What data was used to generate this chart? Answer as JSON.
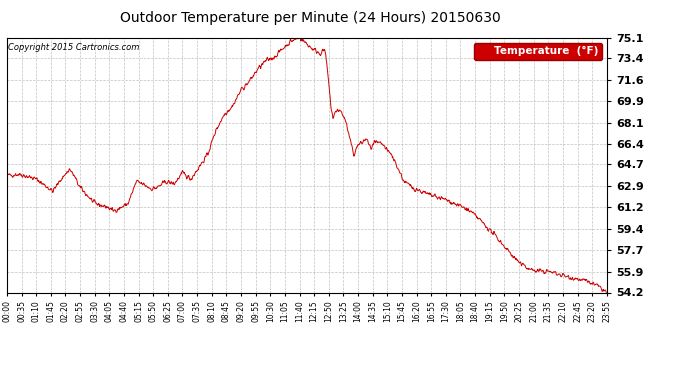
{
  "title": "Outdoor Temperature per Minute (24 Hours) 20150630",
  "copyright_text": "Copyright 2015 Cartronics.com",
  "legend_label": "Temperature  (°F)",
  "line_color": "#cc0000",
  "background_color": "#ffffff",
  "grid_color": "#bbbbbb",
  "ylim": [
    54.2,
    75.1
  ],
  "yticks": [
    54.2,
    55.9,
    57.7,
    59.4,
    61.2,
    62.9,
    64.7,
    66.4,
    68.1,
    69.9,
    71.6,
    73.4,
    75.1
  ],
  "x_tick_interval": 35,
  "total_minutes": 1436,
  "seed": 42,
  "key_points": [
    [
      0,
      63.8
    ],
    [
      30,
      63.9
    ],
    [
      70,
      63.5
    ],
    [
      90,
      63.0
    ],
    [
      110,
      62.5
    ],
    [
      130,
      63.5
    ],
    [
      150,
      64.3
    ],
    [
      160,
      63.8
    ],
    [
      175,
      62.8
    ],
    [
      210,
      61.5
    ],
    [
      240,
      61.2
    ],
    [
      255,
      60.9
    ],
    [
      270,
      61.1
    ],
    [
      290,
      61.5
    ],
    [
      310,
      63.3
    ],
    [
      330,
      63.0
    ],
    [
      345,
      62.7
    ],
    [
      360,
      62.8
    ],
    [
      380,
      63.3
    ],
    [
      400,
      63.1
    ],
    [
      420,
      64.0
    ],
    [
      440,
      63.5
    ],
    [
      460,
      64.5
    ],
    [
      480,
      65.5
    ],
    [
      500,
      67.5
    ],
    [
      520,
      68.8
    ],
    [
      540,
      69.5
    ],
    [
      560,
      70.8
    ],
    [
      580,
      71.5
    ],
    [
      600,
      72.5
    ],
    [
      620,
      73.2
    ],
    [
      640,
      73.5
    ],
    [
      660,
      74.2
    ],
    [
      680,
      74.8
    ],
    [
      700,
      75.1
    ],
    [
      720,
      74.5
    ],
    [
      730,
      74.2
    ],
    [
      740,
      74.0
    ],
    [
      750,
      73.8
    ],
    [
      760,
      74.1
    ],
    [
      765,
      73.0
    ],
    [
      775,
      69.5
    ],
    [
      780,
      68.5
    ],
    [
      790,
      69.2
    ],
    [
      800,
      69.0
    ],
    [
      810,
      68.3
    ],
    [
      820,
      66.8
    ],
    [
      830,
      65.5
    ],
    [
      840,
      66.3
    ],
    [
      850,
      66.5
    ],
    [
      860,
      66.8
    ],
    [
      870,
      66.0
    ],
    [
      880,
      66.5
    ],
    [
      900,
      66.3
    ],
    [
      910,
      65.8
    ],
    [
      920,
      65.5
    ],
    [
      930,
      64.8
    ],
    [
      950,
      63.3
    ],
    [
      970,
      62.8
    ],
    [
      990,
      62.5
    ],
    [
      1010,
      62.2
    ],
    [
      1030,
      62.0
    ],
    [
      1050,
      61.8
    ],
    [
      1070,
      61.5
    ],
    [
      1090,
      61.2
    ],
    [
      1110,
      60.8
    ],
    [
      1130,
      60.2
    ],
    [
      1150,
      59.5
    ],
    [
      1170,
      58.8
    ],
    [
      1190,
      58.0
    ],
    [
      1210,
      57.2
    ],
    [
      1230,
      56.5
    ],
    [
      1260,
      56.0
    ],
    [
      1300,
      55.9
    ],
    [
      1340,
      55.5
    ],
    [
      1380,
      55.2
    ],
    [
      1410,
      54.8
    ],
    [
      1436,
      54.2
    ]
  ]
}
